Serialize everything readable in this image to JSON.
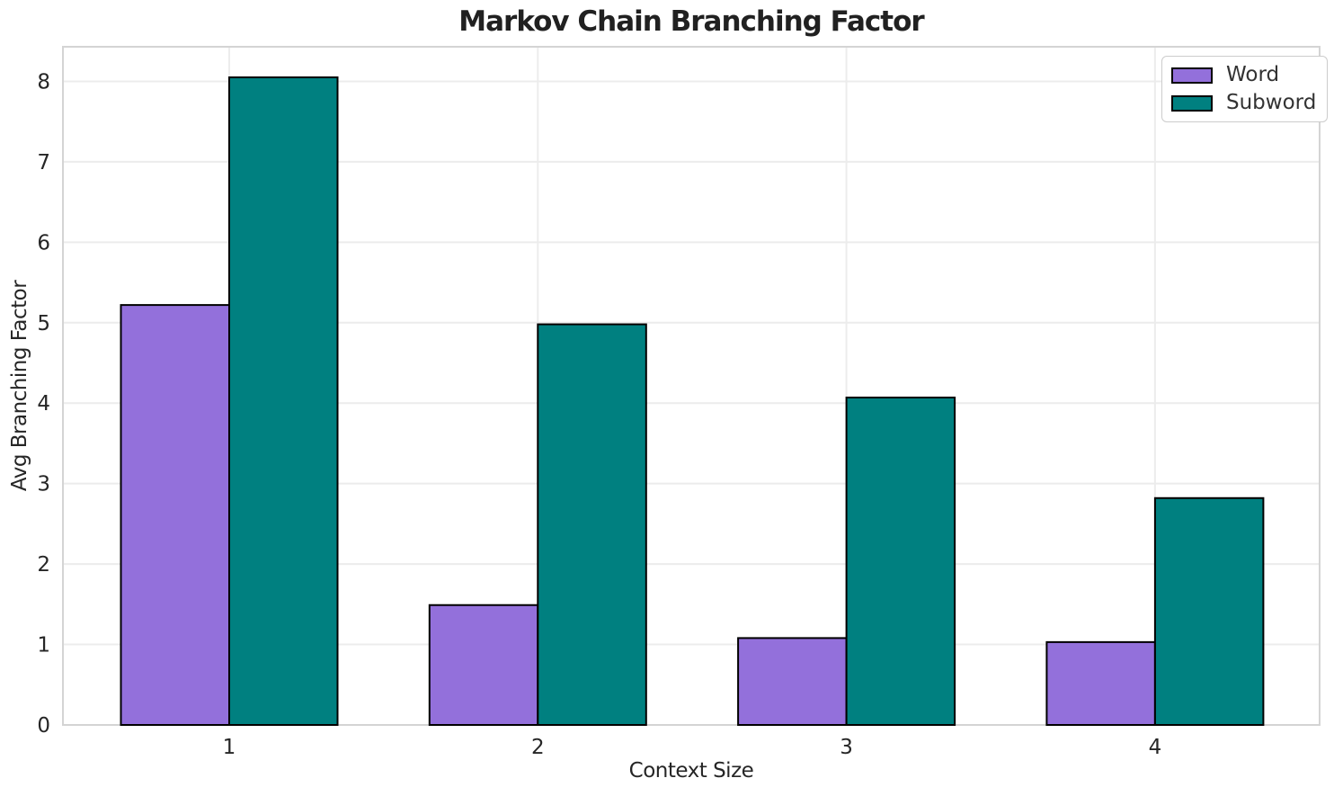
{
  "chart_data": {
    "type": "bar",
    "title": "Markov Chain Branching Factor",
    "xlabel": "Context Size",
    "ylabel": "Avg Branching Factor",
    "categories": [
      "1",
      "2",
      "3",
      "4"
    ],
    "series": [
      {
        "name": "Word",
        "color": "#9370DB",
        "values": [
          5.22,
          1.49,
          1.08,
          1.03
        ]
      },
      {
        "name": "Subword",
        "color": "#008080",
        "values": [
          8.05,
          4.98,
          4.07,
          2.82
        ]
      }
    ],
    "bar_edge_color": "#000000",
    "ylim": [
      0,
      8.43
    ],
    "yticks": [
      0,
      1,
      2,
      3,
      4,
      5,
      6,
      7,
      8
    ],
    "grid": true,
    "legend": {
      "position": "upper right",
      "labels": [
        "Word",
        "Subword"
      ]
    }
  },
  "style_colors": {
    "grid_line": "#ececec",
    "spine": "#d4d4d4",
    "text": "#262626",
    "background": "#ffffff"
  }
}
